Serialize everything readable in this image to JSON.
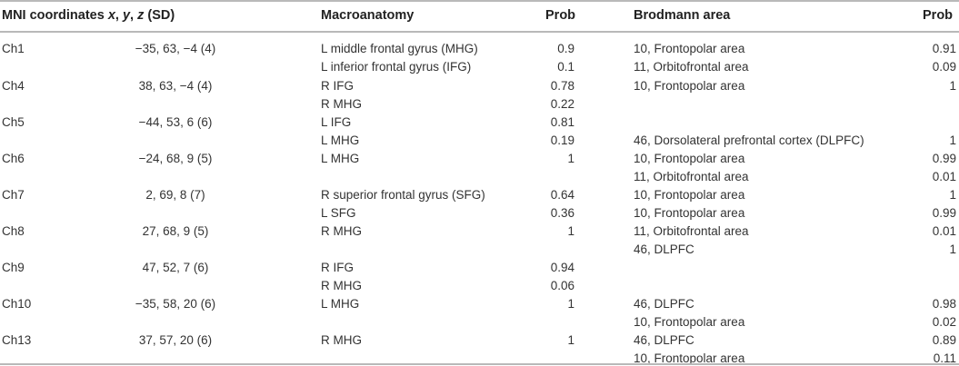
{
  "headers": {
    "mni_prefix": "MNI coordinates ",
    "mni_x": "x",
    "mni_y": "y",
    "mni_z": "z",
    "mni_suffix": " (SD)",
    "macro": "Macroanatomy",
    "prob1": "Prob",
    "brodmann": "Brodmann area",
    "prob2": "Prob"
  },
  "rows": [
    {
      "ch": "Ch1",
      "coords": "−35, 63, −4 (4)",
      "macro": [
        {
          "name": "L middle frontal gyrus (MHG)",
          "prob": "0.9"
        },
        {
          "name": "L inferior frontal gyrus (IFG)",
          "prob": "0.1"
        }
      ],
      "ba": [
        {
          "name": "10, Frontopolar area",
          "prob": "0.91"
        },
        {
          "name": "11, Orbitofrontal area",
          "prob": "0.09"
        }
      ]
    },
    {
      "ch": "Ch4",
      "coords": "38, 63, −4 (4)",
      "macro": [
        {
          "name": "R IFG",
          "prob": "0.78"
        },
        {
          "name": "R MHG",
          "prob": "0.22"
        }
      ],
      "ba": [
        {
          "name": "10, Frontopolar area",
          "prob": "1"
        }
      ]
    },
    {
      "ch": "Ch5",
      "coords": "−44, 53, 6 (6)",
      "macro": [
        {
          "name": "L IFG",
          "prob": "0.81"
        },
        {
          "name": "L MHG",
          "prob": "0.19"
        }
      ],
      "ba": [
        {
          "name": "46, Dorsolateral prefrontal cortex (DLPFC)",
          "prob": "1"
        }
      ]
    },
    {
      "ch": "Ch6",
      "coords": "−24, 68, 9 (5)",
      "macro": [
        {
          "name": "L MHG",
          "prob": "1"
        }
      ],
      "ba": [
        {
          "name": "10, Frontopolar area",
          "prob": "0.99"
        },
        {
          "name": "11, Orbitofrontal area",
          "prob": "0.01"
        }
      ]
    },
    {
      "ch": "Ch7",
      "coords": "2, 69, 8 (7)",
      "macro": [
        {
          "name": "R superior frontal gyrus (SFG)",
          "prob": "0.64"
        },
        {
          "name": "L SFG",
          "prob": "0.36"
        }
      ],
      "ba": [
        {
          "name": "10, Frontopolar area",
          "prob": "1"
        }
      ]
    },
    {
      "ch": "Ch8",
      "coords": "27, 68, 9 (5)",
      "macro": [
        {
          "name": "R MHG",
          "prob": "1"
        }
      ],
      "ba": [
        {
          "name": "10, Frontopolar area",
          "prob": "0.99"
        },
        {
          "name": "11, Orbitofrontal area",
          "prob": "0.01"
        }
      ]
    },
    {
      "ch": "Ch9",
      "coords": "47, 52, 7 (6)",
      "macro": [
        {
          "name": "R IFG",
          "prob": "0.94"
        },
        {
          "name": "R MHG",
          "prob": "0.06"
        }
      ],
      "ba": [
        {
          "name": "46, DLPFC",
          "prob": "1"
        }
      ]
    },
    {
      "ch": "Ch10",
      "coords": "−35, 58, 20 (6)",
      "macro": [
        {
          "name": "L MHG",
          "prob": "1"
        }
      ],
      "ba": [
        {
          "name": "46, DLPFC",
          "prob": "0.98"
        },
        {
          "name": "10, Frontopolar area",
          "prob": "0.02"
        }
      ]
    },
    {
      "ch": "Ch13",
      "coords": "37, 57, 20 (6)",
      "macro": [
        {
          "name": "R MHG",
          "prob": "1"
        }
      ],
      "ba": [
        {
          "name": "46, DLPFC",
          "prob": "0.89"
        },
        {
          "name": "10, Frontopolar area",
          "prob": "0.11"
        }
      ]
    }
  ]
}
